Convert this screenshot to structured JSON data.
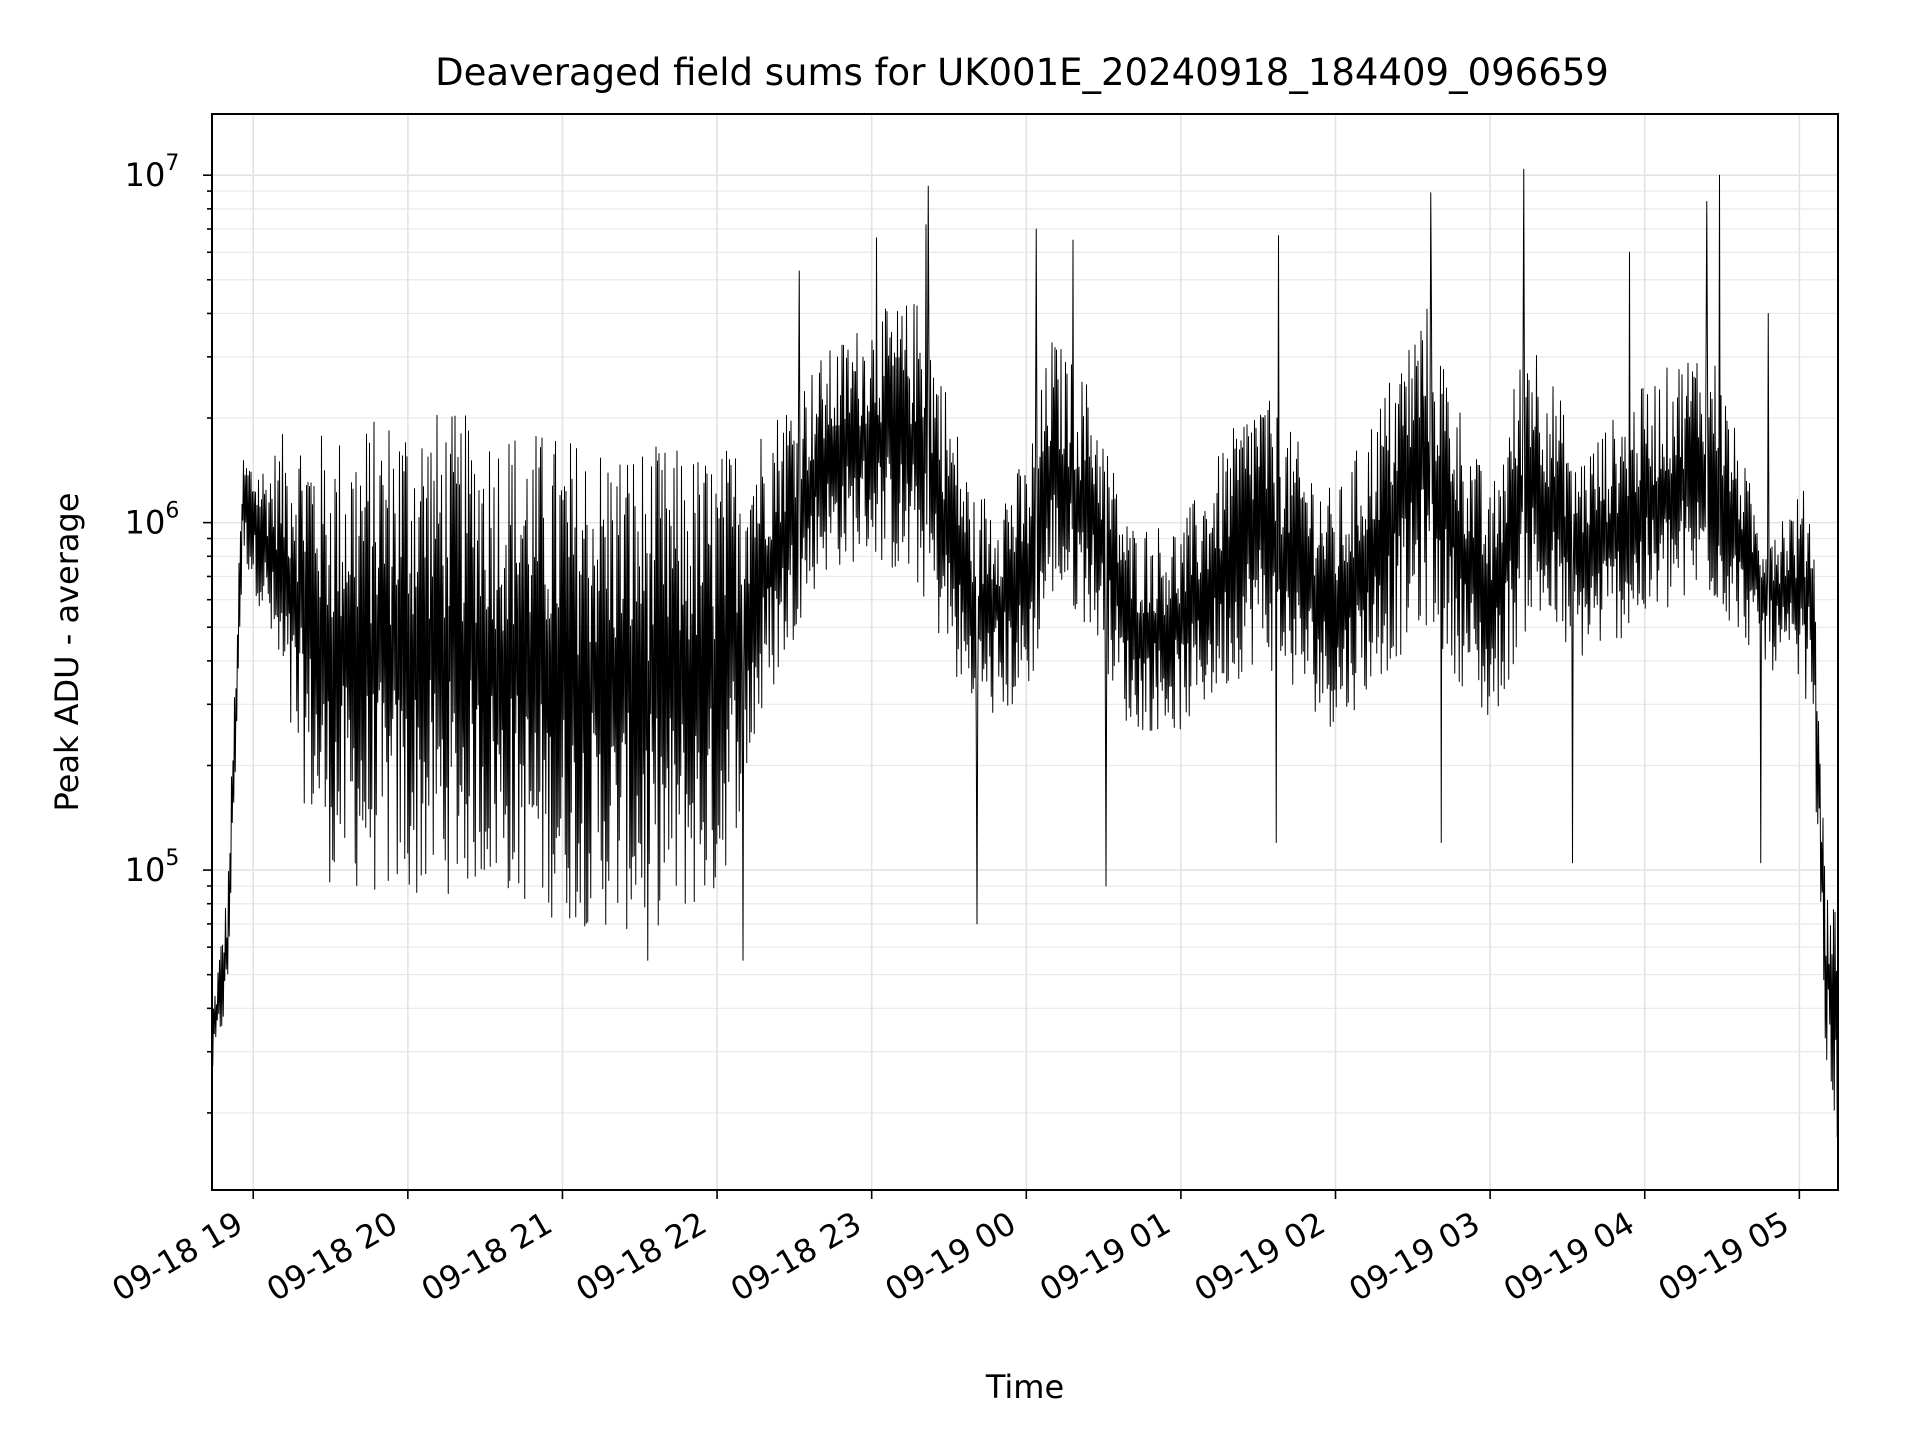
{
  "chart_data": {
    "type": "line",
    "title": "Deaveraged field sums for UK001E_20240918_184409_096659",
    "xlabel": "Time",
    "ylabel": "Peak ADU - average",
    "yscale": "log",
    "ylim": [
      12000,
      15000000
    ],
    "xlim": [
      "2024-09-18 18:44",
      "2024-09-19 05:15"
    ],
    "grid": true,
    "x_ticks": [
      {
        "t": "2024-09-18 19:00",
        "label": "09-18 19"
      },
      {
        "t": "2024-09-18 20:00",
        "label": "09-18 20"
      },
      {
        "t": "2024-09-18 21:00",
        "label": "09-18 21"
      },
      {
        "t": "2024-09-18 22:00",
        "label": "09-18 22"
      },
      {
        "t": "2024-09-18 23:00",
        "label": "09-18 23"
      },
      {
        "t": "2024-09-19 00:00",
        "label": "09-19 00"
      },
      {
        "t": "2024-09-19 01:00",
        "label": "09-19 01"
      },
      {
        "t": "2024-09-19 02:00",
        "label": "09-19 02"
      },
      {
        "t": "2024-09-19 03:00",
        "label": "09-19 03"
      },
      {
        "t": "2024-09-19 04:00",
        "label": "09-19 04"
      },
      {
        "t": "2024-09-19 05:00",
        "label": "09-19 05"
      }
    ],
    "y_ticks": [
      {
        "value": 100000,
        "base": "10",
        "exp": "5"
      },
      {
        "value": 1000000,
        "base": "10",
        "exp": "6"
      },
      {
        "value": 10000000,
        "base": "10",
        "exp": "7"
      }
    ],
    "series": [
      {
        "color": "#000000",
        "envelope": [
          {
            "t": "2024-09-18 18:44",
            "lo": 25000,
            "hi": 40000
          },
          {
            "t": "2024-09-18 18:50",
            "lo": 40000,
            "hi": 90000
          },
          {
            "t": "2024-09-18 18:56",
            "lo": 800000,
            "hi": 1600000
          },
          {
            "t": "2024-09-18 19:05",
            "lo": 500000,
            "hi": 1500000
          },
          {
            "t": "2024-09-18 19:15",
            "lo": 200000,
            "hi": 2000000
          },
          {
            "t": "2024-09-18 19:30",
            "lo": 90000,
            "hi": 1800000
          },
          {
            "t": "2024-09-18 20:00",
            "lo": 80000,
            "hi": 2200000
          },
          {
            "t": "2024-09-18 20:30",
            "lo": 90000,
            "hi": 2000000
          },
          {
            "t": "2024-09-18 21:00",
            "lo": 70000,
            "hi": 1800000
          },
          {
            "t": "2024-09-18 21:30",
            "lo": 65000,
            "hi": 1700000
          },
          {
            "t": "2024-09-18 22:00",
            "lo": 80000,
            "hi": 1600000
          },
          {
            "t": "2024-09-18 22:20",
            "lo": 300000,
            "hi": 2000000
          },
          {
            "t": "2024-09-18 22:40",
            "lo": 700000,
            "hi": 3000000
          },
          {
            "t": "2024-09-18 23:00",
            "lo": 800000,
            "hi": 4000000
          },
          {
            "t": "2024-09-18 23:20",
            "lo": 600000,
            "hi": 4500000
          },
          {
            "t": "2024-09-18 23:40",
            "lo": 250000,
            "hi": 1200000
          },
          {
            "t": "2024-09-19 00:00",
            "lo": 300000,
            "hi": 1500000
          },
          {
            "t": "2024-09-19 00:10",
            "lo": 600000,
            "hi": 3500000
          },
          {
            "t": "2024-09-19 00:25",
            "lo": 500000,
            "hi": 2500000
          },
          {
            "t": "2024-09-19 00:40",
            "lo": 250000,
            "hi": 1000000
          },
          {
            "t": "2024-09-19 01:00",
            "lo": 250000,
            "hi": 1000000
          },
          {
            "t": "2024-09-19 01:30",
            "lo": 400000,
            "hi": 2500000
          },
          {
            "t": "2024-09-19 02:00",
            "lo": 250000,
            "hi": 1200000
          },
          {
            "t": "2024-09-19 02:35",
            "lo": 500000,
            "hi": 4500000
          },
          {
            "t": "2024-09-19 03:00",
            "lo": 250000,
            "hi": 1200000
          },
          {
            "t": "2024-09-19 03:15",
            "lo": 500000,
            "hi": 4000000
          },
          {
            "t": "2024-09-19 03:35",
            "lo": 400000,
            "hi": 1600000
          },
          {
            "t": "2024-09-19 04:00",
            "lo": 500000,
            "hi": 2500000
          },
          {
            "t": "2024-09-19 04:25",
            "lo": 600000,
            "hi": 3500000
          },
          {
            "t": "2024-09-19 04:45",
            "lo": 400000,
            "hi": 1000000
          },
          {
            "t": "2024-09-19 05:05",
            "lo": 300000,
            "hi": 1300000
          },
          {
            "t": "2024-09-19 05:10",
            "lo": 30000,
            "hi": 100000
          },
          {
            "t": "2024-09-19 05:15",
            "lo": 15000,
            "hi": 80000
          }
        ],
        "spikes": [
          {
            "t": "2024-09-18 22:32",
            "value": 5300000
          },
          {
            "t": "2024-09-18 23:02",
            "value": 6600000
          },
          {
            "t": "2024-09-18 23:21",
            "value": 7200000
          },
          {
            "t": "2024-09-18 23:22",
            "value": 9300000
          },
          {
            "t": "2024-09-19 00:04",
            "value": 7000000
          },
          {
            "t": "2024-09-19 00:18",
            "value": 6500000
          },
          {
            "t": "2024-09-19 01:38",
            "value": 6700000
          },
          {
            "t": "2024-09-19 02:37",
            "value": 8900000
          },
          {
            "t": "2024-09-19 03:13",
            "value": 10400000
          },
          {
            "t": "2024-09-19 03:54",
            "value": 6000000
          },
          {
            "t": "2024-09-19 04:24",
            "value": 8400000
          },
          {
            "t": "2024-09-19 04:29",
            "value": 10000000
          },
          {
            "t": "2024-09-19 04:48",
            "value": 4000000
          },
          {
            "t": "2024-09-18 21:33",
            "value": 55000
          },
          {
            "t": "2024-09-18 22:10",
            "value": 55000
          },
          {
            "t": "2024-09-18 23:41",
            "value": 70000
          },
          {
            "t": "2024-09-19 00:31",
            "value": 90000
          },
          {
            "t": "2024-09-19 01:37",
            "value": 120000
          },
          {
            "t": "2024-09-19 02:41",
            "value": 120000
          },
          {
            "t": "2024-09-19 03:32",
            "value": 105000
          },
          {
            "t": "2024-09-19 04:45",
            "value": 105000
          }
        ]
      }
    ]
  }
}
